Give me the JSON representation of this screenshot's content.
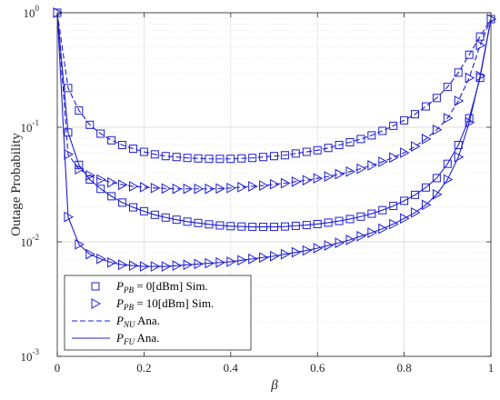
{
  "chart_data": {
    "type": "line",
    "title": "",
    "xlabel": "β",
    "ylabel": "Outage Probability",
    "xlim": [
      0,
      1
    ],
    "ylim": [
      0.001,
      1
    ],
    "yscale": "log",
    "grid": true,
    "legend_position": "bottom-left",
    "color": "#1f1fd2",
    "x_ticks": [
      "0",
      "0.2",
      "0.4",
      "0.6",
      "0.8",
      "1"
    ],
    "y_ticks": [
      {
        "base": "10",
        "exp": "0"
      },
      {
        "base": "10",
        "exp": "-1"
      },
      {
        "base": "10",
        "exp": "-2"
      },
      {
        "base": "10",
        "exp": "-3"
      }
    ],
    "legend": [
      {
        "symbol": "P",
        "sub": "PB",
        "rest": " = 0[dBm] Sim.",
        "marker": "square"
      },
      {
        "symbol": "P",
        "sub": "PB",
        "rest": " = 10[dBm] Sim.",
        "marker": "triangle"
      },
      {
        "symbol": "P",
        "sub": "NU",
        "rest": " Ana.",
        "line": "dashed"
      },
      {
        "symbol": "P",
        "sub": "FU",
        "rest": " Ana.",
        "line": "solid"
      }
    ],
    "x": [
      0,
      0.025,
      0.05,
      0.075,
      0.1,
      0.125,
      0.15,
      0.175,
      0.2,
      0.225,
      0.25,
      0.275,
      0.3,
      0.325,
      0.35,
      0.375,
      0.4,
      0.425,
      0.45,
      0.475,
      0.5,
      0.525,
      0.55,
      0.575,
      0.6,
      0.625,
      0.65,
      0.675,
      0.7,
      0.725,
      0.75,
      0.775,
      0.8,
      0.825,
      0.85,
      0.875,
      0.9,
      0.925,
      0.95,
      0.975,
      1
    ],
    "series": [
      {
        "name": "P_NU, P_PB = 0 dBm",
        "line": "dashed",
        "marker": "square",
        "values": [
          1,
          0.22,
          0.14,
          0.105,
          0.088,
          0.077,
          0.07,
          0.065,
          0.061,
          0.058,
          0.056,
          0.055,
          0.054,
          0.0535,
          0.053,
          0.053,
          0.053,
          0.0535,
          0.054,
          0.055,
          0.056,
          0.057,
          0.059,
          0.061,
          0.063,
          0.066,
          0.07,
          0.074,
          0.079,
          0.085,
          0.093,
          0.103,
          0.115,
          0.13,
          0.152,
          0.18,
          0.225,
          0.3,
          0.43,
          0.62,
          0.88
        ]
      },
      {
        "name": "P_FU, P_PB = 0 dBm",
        "line": "solid",
        "marker": "square",
        "values": [
          1,
          0.09,
          0.047,
          0.035,
          0.029,
          0.025,
          0.022,
          0.02,
          0.0185,
          0.0172,
          0.0163,
          0.0156,
          0.015,
          0.0146,
          0.0142,
          0.0139,
          0.0137,
          0.0136,
          0.0135,
          0.0135,
          0.0135,
          0.0136,
          0.0138,
          0.014,
          0.0143,
          0.0147,
          0.0152,
          0.0158,
          0.0166,
          0.0176,
          0.0189,
          0.0206,
          0.0228,
          0.0257,
          0.0298,
          0.036,
          0.048,
          0.07,
          0.12,
          0.27,
          0.88
        ]
      },
      {
        "name": "P_NU, P_PB = 10 dBm",
        "line": "dashed",
        "marker": "triangle",
        "values": [
          1,
          0.058,
          0.043,
          0.038,
          0.035,
          0.033,
          0.0315,
          0.0305,
          0.03,
          0.0295,
          0.0292,
          0.029,
          0.029,
          0.029,
          0.029,
          0.0292,
          0.0295,
          0.03,
          0.0305,
          0.031,
          0.0318,
          0.0325,
          0.0335,
          0.0345,
          0.0358,
          0.0372,
          0.039,
          0.041,
          0.0435,
          0.0465,
          0.05,
          0.0545,
          0.06,
          0.068,
          0.079,
          0.095,
          0.12,
          0.17,
          0.27,
          0.52,
          0.88
        ]
      },
      {
        "name": "P_FU, P_PB = 10 dBm",
        "line": "solid",
        "marker": "triangle",
        "values": [
          1,
          0.0165,
          0.0095,
          0.0078,
          0.0071,
          0.0066,
          0.0063,
          0.0062,
          0.0061,
          0.0061,
          0.0061,
          0.0062,
          0.0063,
          0.0064,
          0.0065,
          0.0066,
          0.0067,
          0.0069,
          0.0071,
          0.0073,
          0.0075,
          0.0078,
          0.0081,
          0.0084,
          0.0088,
          0.0093,
          0.0098,
          0.0104,
          0.0112,
          0.012,
          0.013,
          0.0143,
          0.016,
          0.018,
          0.021,
          0.026,
          0.035,
          0.055,
          0.11,
          0.28,
          0.88
        ]
      }
    ]
  }
}
